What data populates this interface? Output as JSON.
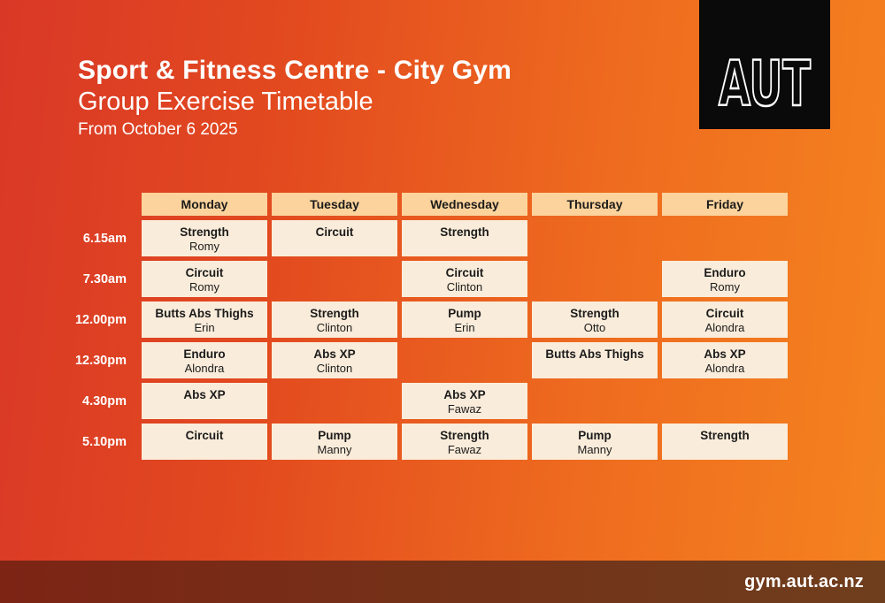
{
  "header": {
    "title": "Sport & Fitness Centre - City Gym",
    "subtitle": "Group Exercise Timetable",
    "effective_date": "From October 6 2025",
    "logo_text": "AUT"
  },
  "footer": {
    "url": "gym.aut.ac.nz"
  },
  "colors": {
    "background_left": "#d93827",
    "background_right": "#f5831f",
    "day_header_bg": "#fcd39c",
    "class_cell_bg": "#faecda",
    "footer_bar_left": "#7d2415",
    "footer_bar_right": "#6f3e1d",
    "logo_bg": "#0a0a0a",
    "text_light": "#ffffff",
    "text_dark": "#1b1b1b"
  },
  "timetable": {
    "days": [
      "Monday",
      "Tuesday",
      "Wednesday",
      "Thursday",
      "Friday"
    ],
    "times": [
      "6.15am",
      "7.30am",
      "12.00pm",
      "12.30pm",
      "4.30pm",
      "5.10pm"
    ],
    "rows": [
      [
        {
          "class": "Strength",
          "instructor": "Romy"
        },
        {
          "class": "Circuit",
          "instructor": ""
        },
        {
          "class": "Strength",
          "instructor": ""
        },
        null,
        null
      ],
      [
        {
          "class": "Circuit",
          "instructor": "Romy"
        },
        null,
        {
          "class": "Circuit",
          "instructor": "Clinton"
        },
        null,
        {
          "class": "Enduro",
          "instructor": "Romy"
        }
      ],
      [
        {
          "class": "Butts Abs Thighs",
          "instructor": "Erin"
        },
        {
          "class": "Strength",
          "instructor": "Clinton"
        },
        {
          "class": "Pump",
          "instructor": "Erin"
        },
        {
          "class": "Strength",
          "instructor": "Otto"
        },
        {
          "class": "Circuit",
          "instructor": "Alondra"
        }
      ],
      [
        {
          "class": "Enduro",
          "instructor": "Alondra"
        },
        {
          "class": "Abs XP",
          "instructor": "Clinton"
        },
        null,
        {
          "class": "Butts Abs Thighs",
          "instructor": ""
        },
        {
          "class": "Abs XP",
          "instructor": "Alondra"
        }
      ],
      [
        {
          "class": "Abs XP",
          "instructor": ""
        },
        null,
        {
          "class": "Abs XP",
          "instructor": "Fawaz"
        },
        null,
        null
      ],
      [
        {
          "class": "Circuit",
          "instructor": ""
        },
        {
          "class": "Pump",
          "instructor": "Manny"
        },
        {
          "class": "Strength",
          "instructor": "Fawaz"
        },
        {
          "class": "Pump",
          "instructor": "Manny"
        },
        {
          "class": "Strength",
          "instructor": ""
        }
      ]
    ]
  }
}
